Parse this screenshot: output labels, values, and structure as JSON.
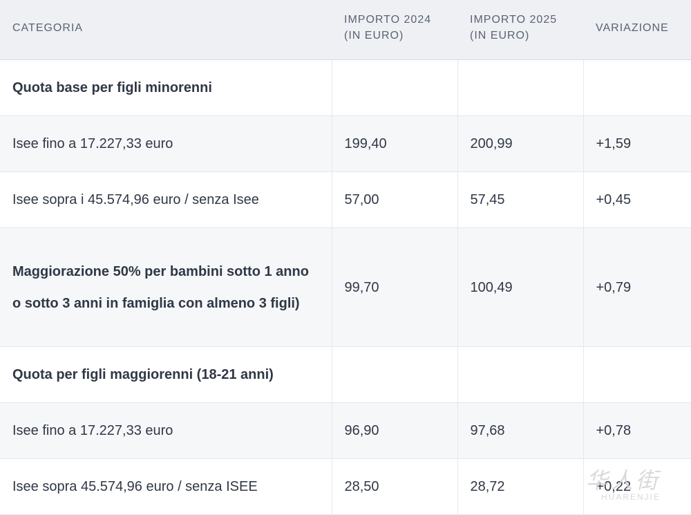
{
  "table": {
    "headers": [
      "CATEGORIA",
      "IMPORTO 2024\n(IN EURO)",
      "IMPORTO 2025\n(IN EURO)",
      "VARIAZIONE"
    ],
    "rows": [
      {
        "category": "Quota base per figli minorenni",
        "v2024": "",
        "v2025": "",
        "change": ""
      },
      {
        "category": "Isee fino a 17.227,33 euro",
        "v2024": "199,40",
        "v2025": "200,99",
        "change": "+1,59"
      },
      {
        "category": "Isee sopra i 45.574,96 euro / senza Isee",
        "v2024": "57,00",
        "v2025": "57,45",
        "change": "+0,45"
      },
      {
        "category": "Maggiorazione 50% per bambini sotto 1 anno o sotto 3 anni in famiglia con almeno 3 figli)",
        "v2024": "99,70",
        "v2025": "100,49",
        "change": "+0,79"
      },
      {
        "category": "Quota per figli maggiorenni (18-21 anni)",
        "v2024": "",
        "v2025": "",
        "change": ""
      },
      {
        "category": "Isee fino a 17.227,33 euro",
        "v2024": "96,90",
        "v2025": "97,68",
        "change": "+0,78"
      },
      {
        "category": "Isee sopra 45.574,96 euro / senza ISEE",
        "v2024": "28,50",
        "v2025": "28,72",
        "change": "+0,22"
      }
    ]
  },
  "watermark": {
    "chinese": "华人街",
    "latin": "HUARENJIE"
  }
}
